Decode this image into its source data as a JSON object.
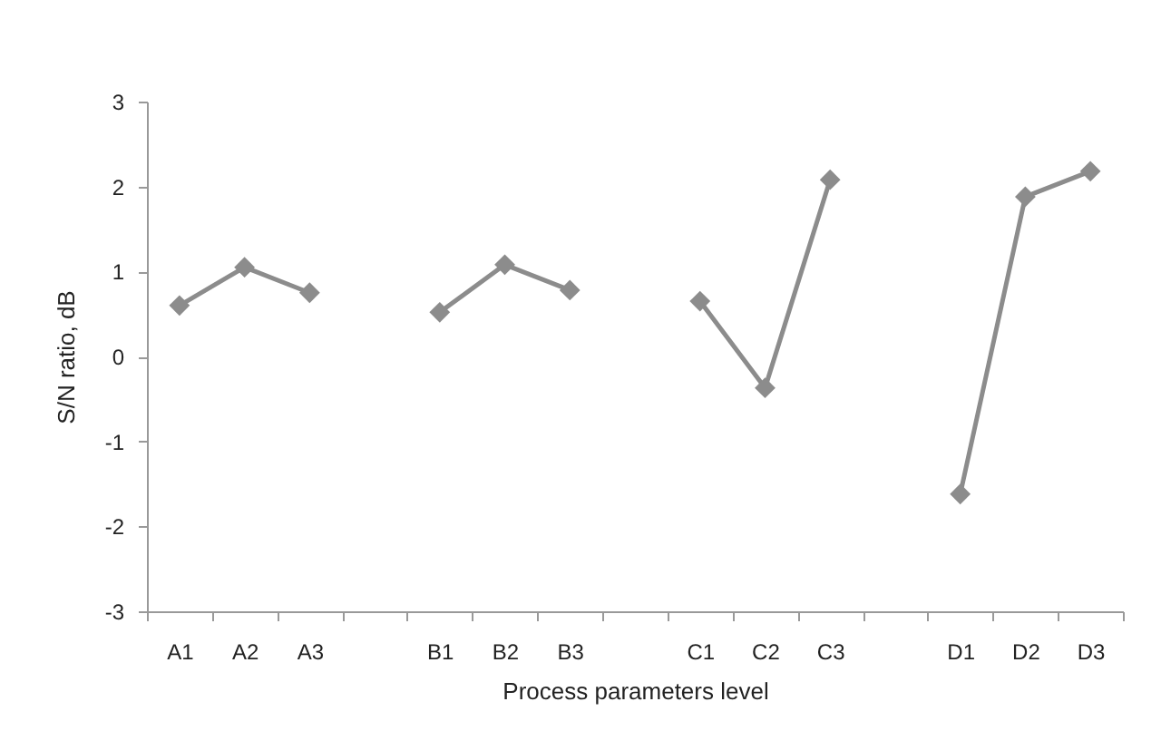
{
  "chart_data": {
    "type": "line",
    "xlabel": "Process parameters level",
    "ylabel": "S/N ratio, dB",
    "categories": [
      "A1",
      "A2",
      "A3",
      null,
      "B1",
      "B2",
      "B3",
      null,
      "C1",
      "C2",
      "C3",
      null,
      "D1",
      "D2",
      "D3"
    ],
    "series": [
      {
        "color": "#8c8c8c",
        "values": [
          0.6,
          1.05,
          0.75,
          null,
          0.52,
          1.08,
          0.78,
          null,
          0.65,
          -0.37,
          2.08,
          null,
          -1.62,
          1.88,
          2.18
        ]
      }
    ],
    "ylim": [
      -3,
      3
    ],
    "yticks": [
      -3,
      -2,
      -1,
      0,
      1,
      2,
      3
    ],
    "grid": false,
    "marker": "diamond",
    "line_style": "solid"
  }
}
